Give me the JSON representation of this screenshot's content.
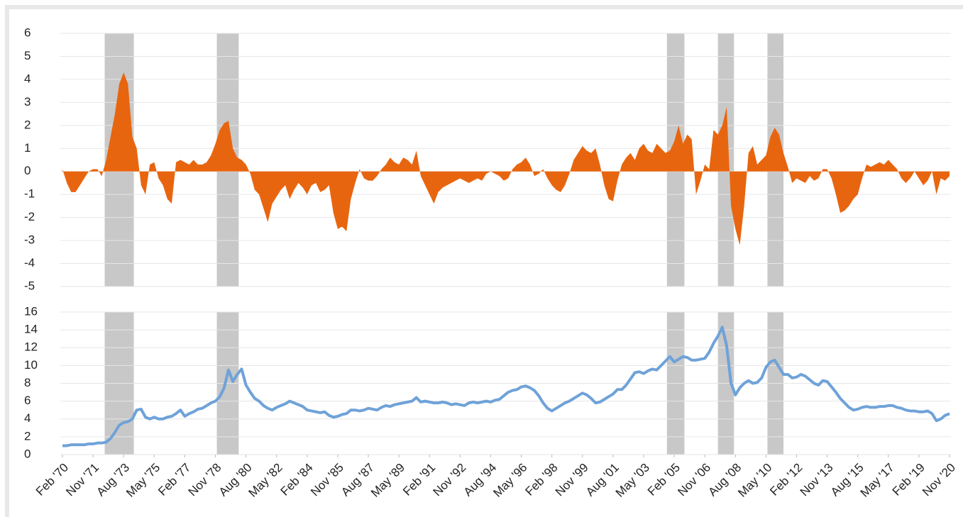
{
  "chart_data": {
    "type": "area",
    "x": [
      "1970-02",
      "1970-05",
      "1970-08",
      "1970-11",
      "1971-02",
      "1971-05",
      "1971-08",
      "1971-11",
      "1972-02",
      "1972-05",
      "1972-08",
      "1972-11",
      "1973-02",
      "1973-05",
      "1973-08",
      "1973-11",
      "1974-02",
      "1974-05",
      "1974-08",
      "1974-11",
      "1975-02",
      "1975-05",
      "1975-08",
      "1975-11",
      "1976-02",
      "1976-05",
      "1976-08",
      "1976-11",
      "1977-02",
      "1977-05",
      "1977-08",
      "1977-11",
      "1978-02",
      "1978-05",
      "1978-08",
      "1978-11",
      "1979-02",
      "1979-05",
      "1979-08",
      "1979-11",
      "1980-02",
      "1980-05",
      "1980-08",
      "1980-11",
      "1981-02",
      "1981-05",
      "1981-08",
      "1981-11",
      "1982-02",
      "1982-05",
      "1982-08",
      "1982-11",
      "1983-02",
      "1983-05",
      "1983-08",
      "1983-11",
      "1984-02",
      "1984-05",
      "1984-08",
      "1984-11",
      "1985-02",
      "1985-05",
      "1985-08",
      "1985-11",
      "1986-02",
      "1986-05",
      "1986-08",
      "1986-11",
      "1987-02",
      "1987-05",
      "1987-08",
      "1987-11",
      "1988-02",
      "1988-05",
      "1988-08",
      "1988-11",
      "1989-02",
      "1989-05",
      "1989-08",
      "1989-11",
      "1990-02",
      "1990-05",
      "1990-08",
      "1990-11",
      "1991-02",
      "1991-05",
      "1991-08",
      "1991-11",
      "1992-02",
      "1992-05",
      "1992-08",
      "1992-11",
      "1993-02",
      "1993-05",
      "1993-08",
      "1993-11",
      "1994-02",
      "1994-05",
      "1994-08",
      "1994-11",
      "1995-02",
      "1995-05",
      "1995-08",
      "1995-11",
      "1996-02",
      "1996-05",
      "1996-08",
      "1996-11",
      "1997-02",
      "1997-05",
      "1997-08",
      "1997-11",
      "1998-02",
      "1998-05",
      "1998-08",
      "1998-11",
      "1999-02",
      "1999-05",
      "1999-08",
      "1999-11",
      "2000-02",
      "2000-05",
      "2000-08",
      "2000-11",
      "2001-02",
      "2001-05",
      "2001-08",
      "2001-11",
      "2002-02",
      "2002-05",
      "2002-08",
      "2002-11",
      "2003-02",
      "2003-05",
      "2003-08",
      "2003-11",
      "2004-02",
      "2004-05",
      "2004-08",
      "2004-11",
      "2005-02",
      "2005-05",
      "2005-08",
      "2005-11",
      "2006-02",
      "2006-05",
      "2006-08",
      "2006-11",
      "2007-02",
      "2007-05",
      "2007-08",
      "2007-11",
      "2008-02",
      "2008-05",
      "2008-08",
      "2008-11",
      "2009-02",
      "2009-05",
      "2009-08",
      "2009-11",
      "2010-02",
      "2010-05",
      "2010-08",
      "2010-11",
      "2011-02",
      "2011-05",
      "2011-08",
      "2011-11",
      "2012-02",
      "2012-05",
      "2012-08",
      "2012-11",
      "2013-02",
      "2013-05",
      "2013-08",
      "2013-11",
      "2014-02",
      "2014-05",
      "2014-08",
      "2014-11",
      "2015-02",
      "2015-05",
      "2015-08",
      "2015-11",
      "2016-02",
      "2016-05",
      "2016-08",
      "2016-11",
      "2017-02",
      "2017-05",
      "2017-08",
      "2017-11",
      "2018-02",
      "2018-05",
      "2018-08",
      "2018-11",
      "2019-02",
      "2019-05",
      "2019-08",
      "2019-11",
      "2020-02",
      "2020-05",
      "2020-08",
      "2020-11"
    ],
    "xticks": [
      {
        "value": "1970-02",
        "label": "Feb '70"
      },
      {
        "value": "1971-11",
        "label": "Nov '71"
      },
      {
        "value": "1973-08",
        "label": "Aug '73"
      },
      {
        "value": "1975-05",
        "label": "May '75"
      },
      {
        "value": "1977-02",
        "label": "Feb '77"
      },
      {
        "value": "1978-11",
        "label": "Nov '78"
      },
      {
        "value": "1980-08",
        "label": "Aug '80"
      },
      {
        "value": "1982-05",
        "label": "May '82"
      },
      {
        "value": "1984-02",
        "label": "Feb '84"
      },
      {
        "value": "1985-11",
        "label": "Nov '85"
      },
      {
        "value": "1987-08",
        "label": "Aug '87"
      },
      {
        "value": "1989-05",
        "label": "May '89"
      },
      {
        "value": "1991-02",
        "label": "Feb '91"
      },
      {
        "value": "1992-11",
        "label": "Nov '92"
      },
      {
        "value": "1994-08",
        "label": "Aug '94"
      },
      {
        "value": "1996-05",
        "label": "May '96"
      },
      {
        "value": "1998-02",
        "label": "Feb '98"
      },
      {
        "value": "1999-11",
        "label": "Nov '99"
      },
      {
        "value": "2001-08",
        "label": "Aug '01"
      },
      {
        "value": "2003-05",
        "label": "May '03"
      },
      {
        "value": "2005-02",
        "label": "Feb '05"
      },
      {
        "value": "2006-11",
        "label": "Nov '06"
      },
      {
        "value": "2008-08",
        "label": "Aug '08"
      },
      {
        "value": "2010-05",
        "label": "May '10"
      },
      {
        "value": "2012-02",
        "label": "Feb '12"
      },
      {
        "value": "2013-11",
        "label": "Nov '13"
      },
      {
        "value": "2015-08",
        "label": "Aug '15"
      },
      {
        "value": "2017-05",
        "label": "May '17"
      },
      {
        "value": "2019-02",
        "label": "Feb '19"
      },
      {
        "value": "2020-11",
        "label": "Nov '20"
      }
    ],
    "ylim": [
      -5,
      6
    ],
    "yticks": [
      -5,
      -4,
      -3,
      -2,
      -1,
      0,
      1,
      2,
      3,
      4,
      5,
      6
    ],
    "y2lim": [
      0,
      16
    ],
    "y2ticks": [
      0,
      2,
      4,
      6,
      8,
      10,
      12,
      14,
      16
    ],
    "grid": true,
    "shaded": [
      {
        "start": "1972-07",
        "end": "1974-03"
      },
      {
        "start": "1978-12",
        "end": "1980-03"
      },
      {
        "start": "2004-09",
        "end": "2005-09"
      },
      {
        "start": "2007-08",
        "end": "2008-07"
      },
      {
        "start": "2010-06",
        "end": "2011-05"
      }
    ],
    "shade_color": "#c8c8c8",
    "series": [
      {
        "type": "area",
        "color": "#e8650f",
        "values": [
          0.1,
          -0.5,
          -0.9,
          -0.9,
          -0.6,
          -0.3,
          0,
          0.1,
          0.1,
          -0.2,
          0.5,
          1.5,
          2.5,
          3.8,
          4.3,
          3.8,
          1.5,
          1.0,
          -0.6,
          -1.0,
          0.3,
          0.4,
          -0.3,
          -0.6,
          -1.2,
          -1.4,
          0.4,
          0.5,
          0.4,
          0.3,
          0.5,
          0.3,
          0.3,
          0.4,
          0.7,
          1.2,
          1.8,
          2.1,
          2.2,
          1.0,
          0.6,
          0.5,
          0.3,
          -0.1,
          -0.8,
          -1.0,
          -1.6,
          -2.2,
          -1.4,
          -1.1,
          -0.8,
          -0.6,
          -1.2,
          -0.8,
          -0.5,
          -0.7,
          -1.0,
          -0.6,
          -0.5,
          -0.9,
          -0.8,
          -0.6,
          -1.8,
          -2.5,
          -2.4,
          -2.6,
          -1.2,
          -0.5,
          0.1,
          -0.3,
          -0.4,
          -0.4,
          -0.2,
          0.1,
          0.3,
          0.6,
          0.4,
          0.3,
          0.6,
          0.5,
          0.3,
          0.9,
          -0.2,
          -0.6,
          -1.0,
          -1.4,
          -0.9,
          -0.7,
          -0.6,
          -0.5,
          -0.4,
          -0.3,
          -0.4,
          -0.5,
          -0.4,
          -0.3,
          -0.4,
          -0.1,
          0,
          -0.1,
          -0.2,
          -0.4,
          -0.3,
          0.1,
          0.3,
          0.4,
          0.6,
          0.3,
          -0.2,
          -0.1,
          0.1,
          -0.3,
          -0.6,
          -0.8,
          -0.9,
          -0.6,
          -0.1,
          0.5,
          0.8,
          1.1,
          0.9,
          0.8,
          1.0,
          0.3,
          -0.6,
          -1.2,
          -1.3,
          -0.4,
          0.3,
          0.6,
          0.8,
          0.5,
          1.0,
          1.2,
          0.9,
          0.8,
          1.2,
          1.0,
          0.8,
          0.9,
          1.3,
          2.0,
          1.2,
          1.6,
          1.4,
          -1.0,
          -0.4,
          0.3,
          0.1,
          1.8,
          1.6,
          2.0,
          2.8,
          -1.5,
          -2.5,
          -3.2,
          -1.5,
          0.8,
          1.1,
          0.3,
          0.5,
          0.7,
          1.5,
          1.9,
          1.6,
          0.8,
          0.2,
          -0.5,
          -0.3,
          -0.4,
          -0.5,
          -0.2,
          -0.4,
          -0.3,
          0.1,
          0.1,
          -0.3,
          -1.0,
          -1.8,
          -1.7,
          -1.5,
          -1.2,
          -1.0,
          -0.3,
          0.3,
          0.2,
          0.3,
          0.4,
          0.3,
          0.5,
          0.3,
          0.1,
          -0.3,
          -0.5,
          -0.3,
          0.0,
          -0.3,
          -0.6,
          -0.4,
          0.0,
          -1.0,
          -0.3,
          -0.4,
          -0.2
        ]
      },
      {
        "type": "line",
        "axis": "y2",
        "color": "#6fa2d8",
        "values": [
          1.0,
          1.0,
          1.1,
          1.1,
          1.1,
          1.1,
          1.2,
          1.2,
          1.3,
          1.3,
          1.4,
          1.8,
          2.5,
          3.3,
          3.6,
          3.7,
          4.0,
          5.0,
          5.1,
          4.2,
          4.0,
          4.2,
          4.0,
          4.0,
          4.2,
          4.3,
          4.6,
          5.0,
          4.3,
          4.6,
          4.8,
          5.1,
          5.2,
          5.5,
          5.8,
          6.0,
          6.5,
          7.5,
          9.5,
          8.2,
          9.0,
          9.6,
          7.8,
          7.0,
          6.3,
          6.0,
          5.5,
          5.2,
          5.0,
          5.3,
          5.5,
          5.7,
          6.0,
          5.8,
          5.6,
          5.4,
          5.0,
          4.9,
          4.8,
          4.7,
          4.8,
          4.4,
          4.2,
          4.3,
          4.5,
          4.6,
          5.0,
          5.0,
          4.9,
          5.0,
          5.2,
          5.1,
          5.0,
          5.3,
          5.5,
          5.4,
          5.6,
          5.7,
          5.8,
          5.9,
          6.0,
          6.4,
          5.9,
          6.0,
          5.9,
          5.8,
          5.8,
          5.9,
          5.8,
          5.6,
          5.7,
          5.6,
          5.5,
          5.8,
          5.9,
          5.8,
          5.9,
          6.0,
          5.9,
          6.1,
          6.2,
          6.6,
          7.0,
          7.2,
          7.3,
          7.6,
          7.7,
          7.5,
          7.2,
          6.6,
          5.8,
          5.2,
          4.9,
          5.2,
          5.5,
          5.8,
          6.0,
          6.3,
          6.6,
          6.9,
          6.7,
          6.3,
          5.8,
          5.9,
          6.2,
          6.5,
          6.8,
          7.3,
          7.3,
          7.8,
          8.5,
          9.2,
          9.3,
          9.1,
          9.4,
          9.6,
          9.5,
          10.0,
          10.5,
          11.0,
          10.4,
          10.7,
          11.0,
          10.9,
          10.6,
          10.6,
          10.7,
          10.8,
          11.5,
          12.5,
          13.3,
          14.3,
          12.2,
          8.0,
          6.7,
          7.5,
          8.0,
          8.3,
          8.0,
          8.1,
          8.6,
          9.8,
          10.4,
          10.6,
          9.8,
          9.0,
          9.0,
          8.6,
          8.7,
          9.0,
          8.8,
          8.4,
          8.0,
          7.8,
          8.3,
          8.2,
          7.6,
          7.0,
          6.3,
          5.8,
          5.3,
          5.0,
          5.1,
          5.3,
          5.4,
          5.3,
          5.3,
          5.4,
          5.4,
          5.5,
          5.5,
          5.3,
          5.2,
          5.0,
          4.9,
          4.9,
          4.8,
          4.8,
          4.9,
          4.6,
          3.8,
          4.0,
          4.4,
          4.6
        ]
      }
    ]
  }
}
